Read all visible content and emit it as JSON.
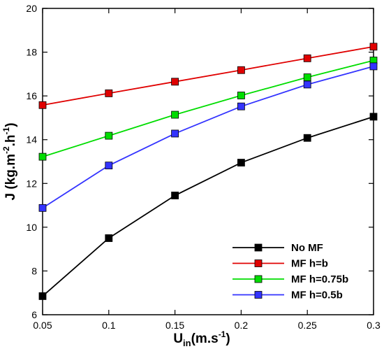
{
  "chart_data": {
    "type": "line",
    "xlabel": "U_in(m.s^-1)",
    "ylabel": "J (kg.m^-2.h^-1)",
    "xlim": [
      0.05,
      0.3
    ],
    "ylim": [
      6,
      20
    ],
    "xticks": [
      0.05,
      0.1,
      0.15,
      0.2,
      0.25,
      0.3
    ],
    "xtick_labels": [
      "0.05",
      "0.1",
      "0.15",
      "0.2",
      "0.25",
      "0.3"
    ],
    "yticks": [
      6,
      8,
      10,
      12,
      14,
      16,
      18,
      20
    ],
    "ytick_labels": [
      "6",
      "8",
      "10",
      "12",
      "14",
      "16",
      "18",
      "20"
    ],
    "grid": false,
    "legend_position": "bottom-right",
    "x": [
      0.05,
      0.1,
      0.15,
      0.2,
      0.25,
      0.3
    ],
    "series": [
      {
        "name": "No MF",
        "color": "#000000",
        "marker": "square",
        "values": [
          6.85,
          9.5,
          11.45,
          12.95,
          14.08,
          15.05
        ]
      },
      {
        "name": "MF h=b",
        "color": "#e00000",
        "marker": "square",
        "values": [
          15.58,
          16.12,
          16.65,
          17.18,
          17.72,
          18.25
        ]
      },
      {
        "name": "MF h=0.75b",
        "color": "#00dd00",
        "marker": "square",
        "values": [
          13.22,
          14.18,
          15.14,
          16.02,
          16.85,
          17.62
        ]
      },
      {
        "name": "MF h=0.5b",
        "color": "#3333ff",
        "marker": "square",
        "values": [
          10.88,
          12.82,
          14.28,
          15.52,
          16.52,
          17.35
        ]
      }
    ]
  }
}
